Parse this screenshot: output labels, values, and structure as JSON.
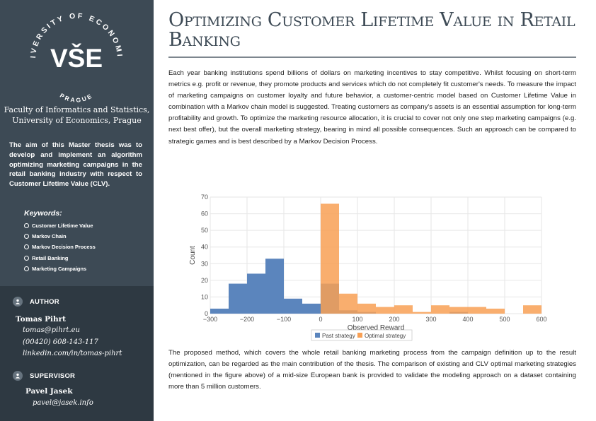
{
  "sidebar": {
    "logo": {
      "mark": "VŠE",
      "ring_text": "UNIVERSITY OF ECONOMICS",
      "city": "PRAGUE"
    },
    "faculty": [
      "Faculty of Informatics and Statistics,",
      "University of Economics, Prague"
    ],
    "aim": "The aim of this Master thesis was to develop and implement an algorithm optimizing marketing campaigns in the retail banking industry with respect to Customer Lifetime Value (CLV).",
    "keywords_title": "Keywords:",
    "keywords": [
      "Customer Lifetime Value",
      "Markov Chain",
      "Markov Decision Process",
      "Retail Banking",
      "Marketing Campaigns"
    ],
    "author": {
      "heading": "AUTHOR",
      "name": "Tomas Pihrt",
      "email": "tomas@pihrt.eu",
      "phone": "(00420) 608-143-117",
      "linkedin": "linkedin.com/in/tomas-pihrt"
    },
    "supervisor": {
      "heading": "SUPERVISOR",
      "name": "Pavel Jasek",
      "email": "pavel@jasek.info"
    },
    "colors": {
      "panel": "#3d4a55",
      "panel_dark": "#2e3942"
    }
  },
  "main": {
    "title": "Optimizing Customer Lifetime Value in Retail Banking",
    "paragraph1": "Each year banking institutions spend billions of dollars on marketing incentives to stay competitive. Whilst focusing on short-term metrics e.g. profit or revenue, they promote products and services which do not completely fit customer's needs. To measure the impact of marketing campaigns on customer loyalty and future behavior, a customer-centric model based on Customer Lifetime Value in combination with a Markov chain model is suggested. Treating customers as company's assets is an essential assumption for long-term profitability and growth. To optimize the marketing resource allocation, it is crucial to cover not only one step marketing campaigns (e.g. next best offer), but the overall marketing strategy, bearing in mind all possible consequences. Such an approach can be compared to strategic games and is best described by a Markov Decision Process.",
    "paragraph2": "The proposed method, which covers the whole retail banking marketing process from the campaign definition up to the result optimization, can be regarded as the main contribution of the thesis. The comparison of existing and CLV optimal marketing strategies (mentioned in the figure above) of a mid-size European bank is provided to validate the modeling approach on a dataset containing more than 5 million customers."
  },
  "chart_data": {
    "type": "histogram",
    "xlabel": "Observed Reward",
    "ylabel": "Count",
    "xlim": [
      -300,
      600
    ],
    "ylim": [
      0,
      70
    ],
    "xticks": [
      -300,
      -200,
      -100,
      0,
      100,
      200,
      300,
      400,
      500,
      600
    ],
    "yticks": [
      0,
      10,
      20,
      30,
      40,
      50,
      60,
      70
    ],
    "grid": true,
    "legend_position": "bottom-center",
    "series": [
      {
        "name": "Past strategy",
        "color": "#5b85bd",
        "bins": [
          {
            "x0": -300,
            "x1": -250,
            "count": 3
          },
          {
            "x0": -250,
            "x1": -200,
            "count": 18
          },
          {
            "x0": -200,
            "x1": -150,
            "count": 24
          },
          {
            "x0": -150,
            "x1": -100,
            "count": 33
          },
          {
            "x0": -100,
            "x1": -50,
            "count": 9
          },
          {
            "x0": -50,
            "x1": 0,
            "count": 6
          },
          {
            "x0": 0,
            "x1": 50,
            "count": 18
          },
          {
            "x0": 50,
            "x1": 100,
            "count": 2
          },
          {
            "x0": 100,
            "x1": 150,
            "count": 1
          },
          {
            "x0": 350,
            "x1": 400,
            "count": 1
          }
        ]
      },
      {
        "name": "Optimal strategy",
        "color": "#f8a055",
        "bins": [
          {
            "x0": 0,
            "x1": 50,
            "count": 66
          },
          {
            "x0": 50,
            "x1": 100,
            "count": 12
          },
          {
            "x0": 100,
            "x1": 150,
            "count": 6
          },
          {
            "x0": 150,
            "x1": 200,
            "count": 4
          },
          {
            "x0": 200,
            "x1": 250,
            "count": 5
          },
          {
            "x0": 250,
            "x1": 300,
            "count": 1
          },
          {
            "x0": 300,
            "x1": 350,
            "count": 5
          },
          {
            "x0": 350,
            "x1": 400,
            "count": 4
          },
          {
            "x0": 400,
            "x1": 450,
            "count": 4
          },
          {
            "x0": 450,
            "x1": 500,
            "count": 3
          },
          {
            "x0": 550,
            "x1": 600,
            "count": 5
          }
        ]
      }
    ]
  }
}
